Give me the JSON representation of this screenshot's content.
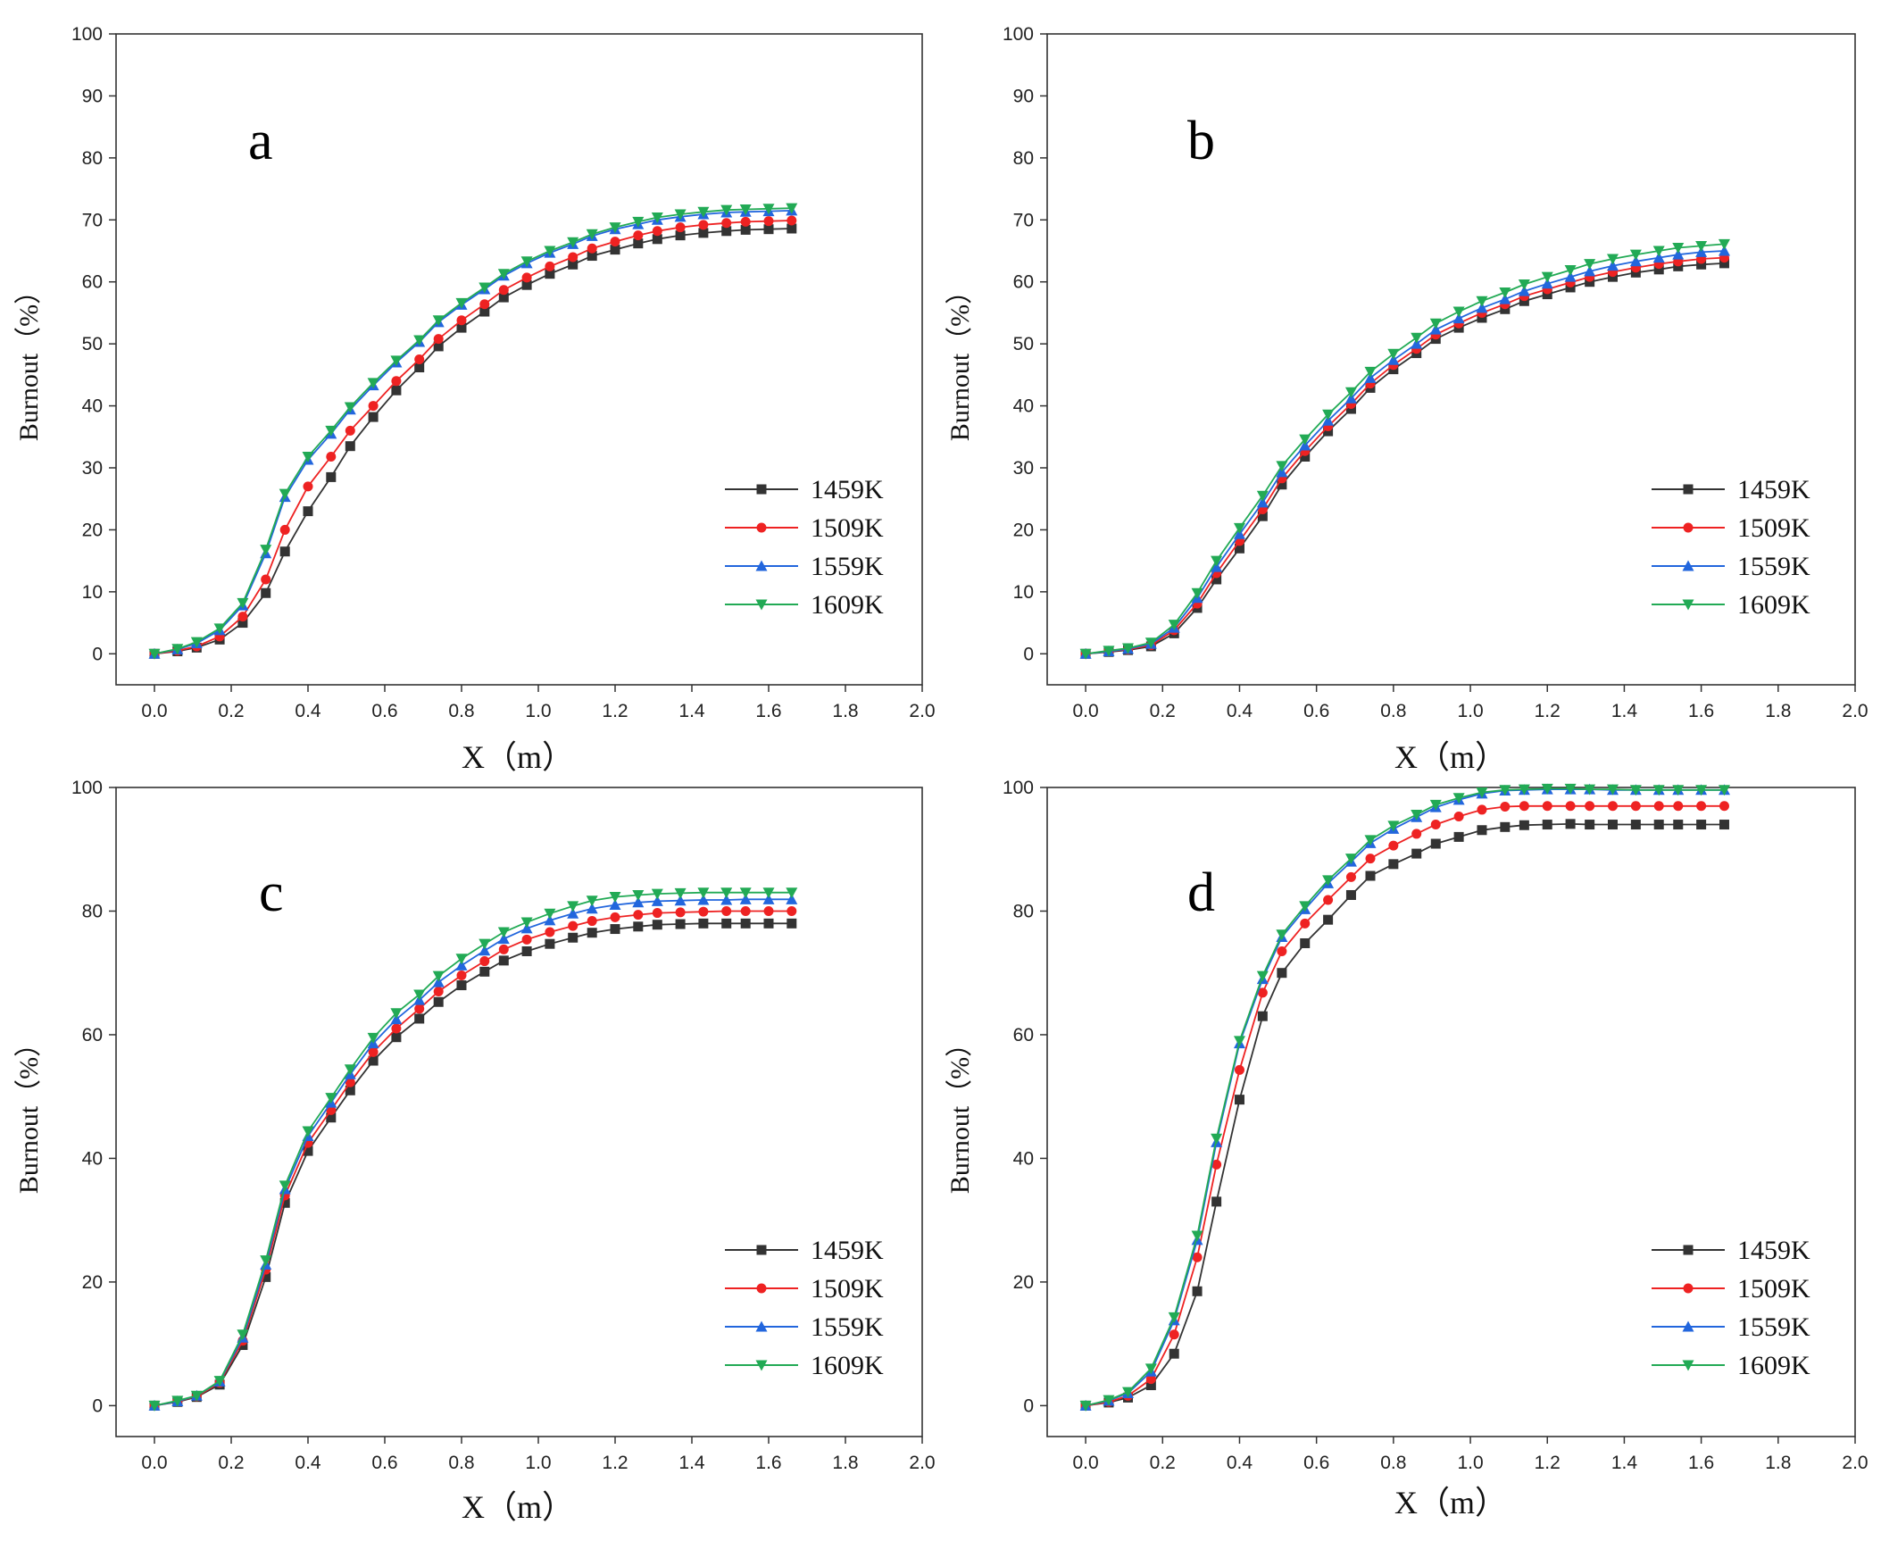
{
  "colors": {
    "1459K": "#333333",
    "1509K": "#ee2222",
    "1559K": "#2266dd",
    "1609K": "#22aa55"
  },
  "chart_data": [
    {
      "type": "line",
      "panel_label": "a",
      "xlabel": "X（m）",
      "ylabel": "Burnout（%）",
      "xlim": [
        -0.1,
        2.0
      ],
      "ylim": [
        -5,
        100
      ],
      "xticks": [
        0.0,
        0.2,
        0.4,
        0.6,
        0.8,
        1.0,
        1.2,
        1.4,
        1.6,
        1.8,
        2.0
      ],
      "xtick_labels": [
        "0.0",
        "0.2",
        "0.4",
        "0.6",
        "0.8",
        "1.0",
        "1.2",
        "1.4",
        "1.6",
        "1.8",
        "2.0"
      ],
      "yticks": [
        0,
        10,
        20,
        30,
        40,
        50,
        60,
        70,
        80,
        90,
        100
      ],
      "ytick_labels": [
        "0",
        "10",
        "20",
        "30",
        "40",
        "50",
        "60",
        "70",
        "80",
        "90",
        "100"
      ],
      "legend_position": "lower-right",
      "x": [
        0.0,
        0.06,
        0.11,
        0.17,
        0.23,
        0.29,
        0.34,
        0.4,
        0.46,
        0.51,
        0.57,
        0.63,
        0.69,
        0.74,
        0.8,
        0.86,
        0.91,
        0.97,
        1.03,
        1.09,
        1.14,
        1.2,
        1.26,
        1.31,
        1.37,
        1.43,
        1.49,
        1.54,
        1.6,
        1.66
      ],
      "series": [
        {
          "name": "1459K",
          "marker": "square",
          "values": [
            0,
            0.4,
            1.0,
            2.3,
            5.0,
            9.8,
            16.5,
            23,
            28.5,
            33.5,
            38.2,
            42.5,
            46.2,
            49.6,
            52.6,
            55.2,
            57.5,
            59.5,
            61.3,
            62.8,
            64.2,
            65.2,
            66.2,
            66.9,
            67.5,
            67.9,
            68.2,
            68.4,
            68.5,
            68.6
          ]
        },
        {
          "name": "1509K",
          "marker": "circle",
          "values": [
            0,
            0.5,
            1.2,
            2.8,
            6.0,
            12,
            20,
            27,
            31.8,
            36,
            40,
            44,
            47.5,
            50.8,
            53.8,
            56.4,
            58.7,
            60.7,
            62.5,
            64,
            65.4,
            66.5,
            67.5,
            68.2,
            68.8,
            69.2,
            69.5,
            69.7,
            69.8,
            69.9
          ]
        },
        {
          "name": "1559K",
          "marker": "triangle-up",
          "values": [
            0,
            0.7,
            1.7,
            3.8,
            7.8,
            16.2,
            25.3,
            31.3,
            35.5,
            39.4,
            43.3,
            47,
            50.3,
            53.5,
            56.3,
            58.8,
            61,
            63,
            64.7,
            66.1,
            67.4,
            68.5,
            69.3,
            70,
            70.5,
            70.9,
            71.2,
            71.3,
            71.4,
            71.5
          ]
        },
        {
          "name": "1609K",
          "marker": "triangle-down",
          "values": [
            0,
            0.8,
            1.9,
            4.1,
            8.2,
            16.8,
            25.8,
            31.8,
            36,
            39.8,
            43.7,
            47.3,
            50.6,
            53.8,
            56.6,
            59.1,
            61.3,
            63.3,
            65,
            66.4,
            67.7,
            68.8,
            69.7,
            70.4,
            70.9,
            71.3,
            71.6,
            71.7,
            71.8,
            71.9
          ]
        }
      ]
    },
    {
      "type": "line",
      "panel_label": "b",
      "xlabel": "X（m）",
      "ylabel": "Burnout（%）",
      "xlim": [
        -0.1,
        2.0
      ],
      "ylim": [
        -5,
        100
      ],
      "xticks": [
        0.0,
        0.2,
        0.4,
        0.6,
        0.8,
        1.0,
        1.2,
        1.4,
        1.6,
        1.8,
        2.0
      ],
      "xtick_labels": [
        "0.0",
        "0.2",
        "0.4",
        "0.6",
        "0.8",
        "1.0",
        "1.2",
        "1.4",
        "1.6",
        "1.8",
        "2.0"
      ],
      "yticks": [
        0,
        10,
        20,
        30,
        40,
        50,
        60,
        70,
        80,
        90,
        100
      ],
      "ytick_labels": [
        "0",
        "10",
        "20",
        "30",
        "40",
        "50",
        "60",
        "70",
        "80",
        "90",
        "100"
      ],
      "legend_position": "lower-right",
      "x": [
        0.0,
        0.06,
        0.11,
        0.17,
        0.23,
        0.29,
        0.34,
        0.4,
        0.46,
        0.51,
        0.57,
        0.63,
        0.69,
        0.74,
        0.8,
        0.86,
        0.91,
        0.97,
        1.03,
        1.09,
        1.14,
        1.2,
        1.26,
        1.31,
        1.37,
        1.43,
        1.49,
        1.54,
        1.6,
        1.66
      ],
      "series": [
        {
          "name": "1459K",
          "marker": "square",
          "values": [
            0,
            0.3,
            0.6,
            1.2,
            3.3,
            7.4,
            12,
            17,
            22.2,
            27.3,
            31.8,
            35.9,
            39.5,
            42.9,
            45.9,
            48.5,
            50.8,
            52.6,
            54.2,
            55.6,
            56.9,
            58,
            59.1,
            60,
            60.8,
            61.5,
            62,
            62.5,
            62.8,
            63
          ]
        },
        {
          "name": "1509K",
          "marker": "circle",
          "values": [
            0,
            0.4,
            0.7,
            1.4,
            3.8,
            8.1,
            13,
            18.2,
            23.3,
            28.3,
            32.7,
            36.7,
            40.3,
            43.6,
            46.6,
            49.2,
            51.5,
            53.3,
            55,
            56.4,
            57.7,
            58.8,
            59.9,
            60.8,
            61.6,
            62.3,
            62.9,
            63.3,
            63.7,
            63.9
          ]
        },
        {
          "name": "1559K",
          "marker": "triangle-up",
          "values": [
            0,
            0.4,
            0.8,
            1.6,
            4.2,
            9,
            14,
            19.3,
            24.4,
            29.3,
            33.6,
            37.6,
            41.2,
            44.5,
            47.4,
            50,
            52.3,
            54.1,
            55.8,
            57.2,
            58.5,
            59.7,
            60.8,
            61.7,
            62.6,
            63.3,
            63.9,
            64.4,
            64.8,
            65
          ]
        },
        {
          "name": "1609K",
          "marker": "triangle-down",
          "values": [
            0,
            0.5,
            0.9,
            1.8,
            4.7,
            9.8,
            15,
            20.3,
            25.5,
            30.3,
            34.6,
            38.6,
            42.2,
            45.5,
            48.4,
            51,
            53.3,
            55.2,
            56.9,
            58.3,
            59.6,
            60.8,
            61.9,
            62.9,
            63.7,
            64.4,
            65,
            65.5,
            65.8,
            66.1
          ]
        }
      ]
    },
    {
      "type": "line",
      "panel_label": "c",
      "xlabel": "X（m）",
      "ylabel": "Burnout（%）",
      "xlim": [
        -0.1,
        2.0
      ],
      "ylim": [
        -5,
        100
      ],
      "xticks": [
        0.0,
        0.2,
        0.4,
        0.6,
        0.8,
        1.0,
        1.2,
        1.4,
        1.6,
        1.8,
        2.0
      ],
      "xtick_labels": [
        "0.0",
        "0.2",
        "0.4",
        "0.6",
        "0.8",
        "1.0",
        "1.2",
        "1.4",
        "1.6",
        "1.8",
        "2.0"
      ],
      "yticks": [
        0,
        20,
        40,
        60,
        80,
        100
      ],
      "ytick_labels": [
        "0",
        "20",
        "40",
        "60",
        "80",
        "100"
      ],
      "legend_position": "lower-right",
      "x": [
        0.0,
        0.06,
        0.11,
        0.17,
        0.23,
        0.29,
        0.34,
        0.4,
        0.46,
        0.51,
        0.57,
        0.63,
        0.69,
        0.74,
        0.8,
        0.86,
        0.91,
        0.97,
        1.03,
        1.09,
        1.14,
        1.2,
        1.26,
        1.31,
        1.37,
        1.43,
        1.49,
        1.54,
        1.6,
        1.66
      ],
      "series": [
        {
          "name": "1459K",
          "marker": "square",
          "values": [
            0,
            0.6,
            1.4,
            3.4,
            9.8,
            20.8,
            32.8,
            41.2,
            46.6,
            51,
            55.8,
            59.6,
            62.6,
            65.3,
            68,
            70.2,
            72,
            73.5,
            74.7,
            75.7,
            76.5,
            77.1,
            77.5,
            77.8,
            77.9,
            78,
            78,
            78,
            78,
            78
          ]
        },
        {
          "name": "1509K",
          "marker": "circle",
          "values": [
            0,
            0.7,
            1.5,
            3.7,
            10.5,
            22,
            34,
            42.5,
            47.8,
            52.3,
            57.2,
            61,
            64.2,
            67,
            69.6,
            71.9,
            73.8,
            75.4,
            76.6,
            77.6,
            78.4,
            79,
            79.4,
            79.7,
            79.8,
            79.9,
            80,
            80,
            80,
            80
          ]
        },
        {
          "name": "1559K",
          "marker": "triangle-up",
          "values": [
            0,
            0.7,
            1.6,
            3.9,
            11,
            22.8,
            35,
            43.6,
            49,
            53.6,
            58.6,
            62.5,
            65.6,
            68.5,
            71.2,
            73.6,
            75.5,
            77.2,
            78.5,
            79.6,
            80.4,
            81,
            81.4,
            81.6,
            81.7,
            81.8,
            81.8,
            81.9,
            81.9,
            81.9
          ]
        },
        {
          "name": "1609K",
          "marker": "triangle-down",
          "values": [
            0,
            0.8,
            1.6,
            4.0,
            11.5,
            23.5,
            35.6,
            44.4,
            49.8,
            54.4,
            59.5,
            63.5,
            66.5,
            69.5,
            72.3,
            74.7,
            76.6,
            78.2,
            79.6,
            80.8,
            81.7,
            82.3,
            82.6,
            82.8,
            82.9,
            83,
            83,
            83,
            83,
            83
          ]
        }
      ]
    },
    {
      "type": "line",
      "panel_label": "d",
      "xlabel": "X（m）",
      "ylabel": "Burnout（%）",
      "xlim": [
        -0.1,
        2.0
      ],
      "ylim": [
        -5,
        100
      ],
      "xticks": [
        0.0,
        0.2,
        0.4,
        0.6,
        0.8,
        1.0,
        1.2,
        1.4,
        1.6,
        1.8,
        2.0
      ],
      "xtick_labels": [
        "0.0",
        "0.2",
        "0.4",
        "0.6",
        "0.8",
        "1.0",
        "1.2",
        "1.4",
        "1.6",
        "1.8",
        "2.0"
      ],
      "yticks": [
        0,
        20,
        40,
        60,
        80,
        100
      ],
      "ytick_labels": [
        "0",
        "20",
        "40",
        "60",
        "80",
        "100"
      ],
      "legend_position": "lower-right",
      "x": [
        0.0,
        0.06,
        0.11,
        0.17,
        0.23,
        0.29,
        0.34,
        0.4,
        0.46,
        0.51,
        0.57,
        0.63,
        0.69,
        0.74,
        0.8,
        0.86,
        0.91,
        0.97,
        1.03,
        1.09,
        1.14,
        1.2,
        1.26,
        1.31,
        1.37,
        1.43,
        1.49,
        1.54,
        1.6,
        1.66
      ],
      "series": [
        {
          "name": "1459K",
          "marker": "square",
          "values": [
            0,
            0.5,
            1.3,
            3.3,
            8.4,
            18.5,
            33,
            49.5,
            63,
            70,
            74.8,
            78.6,
            82.6,
            85.7,
            87.6,
            89.3,
            90.9,
            92,
            93.1,
            93.6,
            93.9,
            94,
            94.1,
            94,
            94,
            94,
            94,
            94,
            94,
            94
          ]
        },
        {
          "name": "1509K",
          "marker": "circle",
          "values": [
            0,
            0.6,
            1.6,
            4.3,
            11.5,
            24,
            39,
            54.3,
            66.8,
            73.5,
            78,
            81.8,
            85.5,
            88.5,
            90.6,
            92.5,
            94,
            95.3,
            96.4,
            96.9,
            97,
            97,
            97,
            97,
            97,
            97,
            97,
            97,
            97,
            97
          ]
        },
        {
          "name": "1559K",
          "marker": "triangle-up",
          "values": [
            0,
            0.8,
            2.0,
            5.5,
            13.8,
            26.8,
            42.6,
            58.6,
            69,
            75.8,
            80.3,
            84.5,
            88,
            91,
            93.3,
            95.2,
            96.8,
            98,
            99,
            99.5,
            99.6,
            99.7,
            99.7,
            99.7,
            99.6,
            99.6,
            99.6,
            99.6,
            99.6,
            99.6
          ]
        },
        {
          "name": "1609K",
          "marker": "triangle-down",
          "values": [
            0,
            0.9,
            2.2,
            6.0,
            14.3,
            27.5,
            43.2,
            59,
            69.5,
            76.2,
            80.8,
            85,
            88.5,
            91.5,
            93.8,
            95.6,
            97.2,
            98.3,
            99.2,
            99.6,
            99.7,
            99.8,
            99.8,
            99.7,
            99.7,
            99.6,
            99.6,
            99.6,
            99.6,
            99.6
          ]
        }
      ]
    }
  ]
}
